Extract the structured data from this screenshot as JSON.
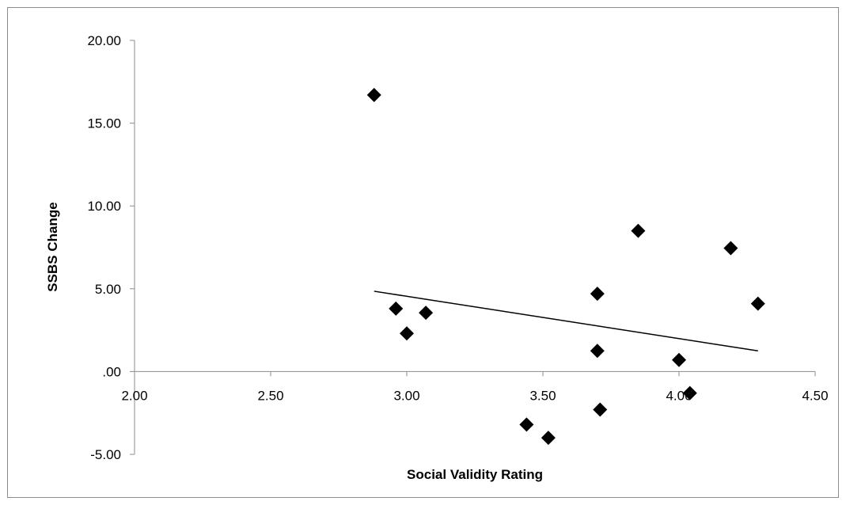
{
  "chart_data": {
    "type": "scatter",
    "title": "",
    "xlabel": "Social Validity Rating",
    "ylabel": "SSBS Change",
    "xlim": [
      2.0,
      4.5
    ],
    "ylim": [
      -5.0,
      20.0
    ],
    "x_ticks": [
      2.0,
      2.5,
      3.0,
      3.5,
      4.0,
      4.5
    ],
    "y_ticks": [
      -5.0,
      0.0,
      5.0,
      10.0,
      15.0,
      20.0
    ],
    "x_tick_labels": [
      "2.00",
      "2.50",
      "3.00",
      "3.50",
      "4.00",
      "4.50"
    ],
    "y_tick_labels": [
      "-5.00",
      ".00",
      "5.00",
      "10.00",
      "15.00",
      "20.00"
    ],
    "grid": false,
    "legend": "none",
    "marker": "diamond",
    "marker_color": "#000000",
    "series": [
      {
        "points": [
          {
            "x": 2.88,
            "y": 16.7
          },
          {
            "x": 2.96,
            "y": 3.8
          },
          {
            "x": 3.0,
            "y": 2.3
          },
          {
            "x": 3.07,
            "y": 3.55
          },
          {
            "x": 3.44,
            "y": -3.2
          },
          {
            "x": 3.52,
            "y": -4.0
          },
          {
            "x": 3.7,
            "y": 4.7
          },
          {
            "x": 3.7,
            "y": 1.25
          },
          {
            "x": 3.71,
            "y": -2.3
          },
          {
            "x": 3.85,
            "y": 8.5
          },
          {
            "x": 4.0,
            "y": 0.7
          },
          {
            "x": 4.04,
            "y": -1.3
          },
          {
            "x": 4.19,
            "y": 7.45
          },
          {
            "x": 4.29,
            "y": 4.1
          }
        ]
      }
    ],
    "trendline": {
      "type": "linear",
      "color": "#000000",
      "points": [
        {
          "x": 2.88,
          "y": 4.85
        },
        {
          "x": 4.29,
          "y": 1.25
        }
      ]
    }
  }
}
